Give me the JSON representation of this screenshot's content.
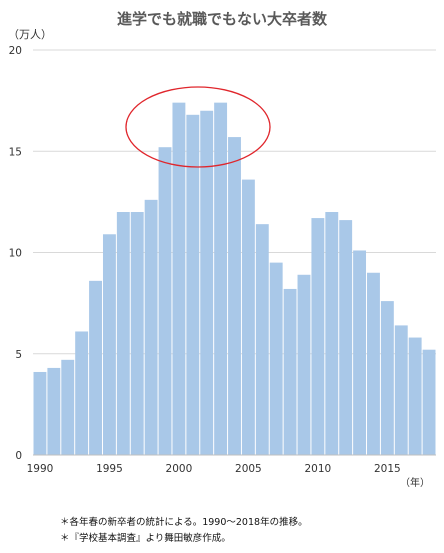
{
  "chart_data": {
    "type": "bar",
    "title": "進学でも就職でもない大卒者数",
    "ylabel": "（万人）",
    "xlabel": "（年）",
    "ylim": [
      0,
      20
    ],
    "yticks": [
      0,
      5,
      10,
      15,
      20
    ],
    "xticks": [
      1990,
      1995,
      2000,
      2005,
      2010,
      2015
    ],
    "grid": true,
    "bar_color": "#a9c8e8",
    "highlight_color": "#e0262c",
    "highlight_years": [
      1999,
      2000,
      2001,
      2002,
      2003
    ],
    "x": [
      1990,
      1991,
      1992,
      1993,
      1994,
      1995,
      1996,
      1997,
      1998,
      1999,
      2000,
      2001,
      2002,
      2003,
      2004,
      2005,
      2006,
      2007,
      2008,
      2009,
      2010,
      2011,
      2012,
      2013,
      2014,
      2015,
      2016,
      2017,
      2018
    ],
    "values": [
      4.1,
      4.3,
      4.7,
      6.1,
      8.6,
      10.9,
      12.0,
      12.0,
      12.6,
      15.2,
      17.4,
      16.8,
      17.0,
      17.4,
      15.7,
      13.6,
      11.4,
      9.5,
      8.2,
      8.9,
      11.7,
      12.0,
      11.6,
      10.1,
      9.0,
      7.6,
      6.4,
      5.8,
      5.2
    ]
  },
  "notes": {
    "line1": "＊各年春の新卒者の統計による。1990〜2018年の推移。",
    "line2": "＊『学校基本調査』より舞田敏彦作成。"
  }
}
